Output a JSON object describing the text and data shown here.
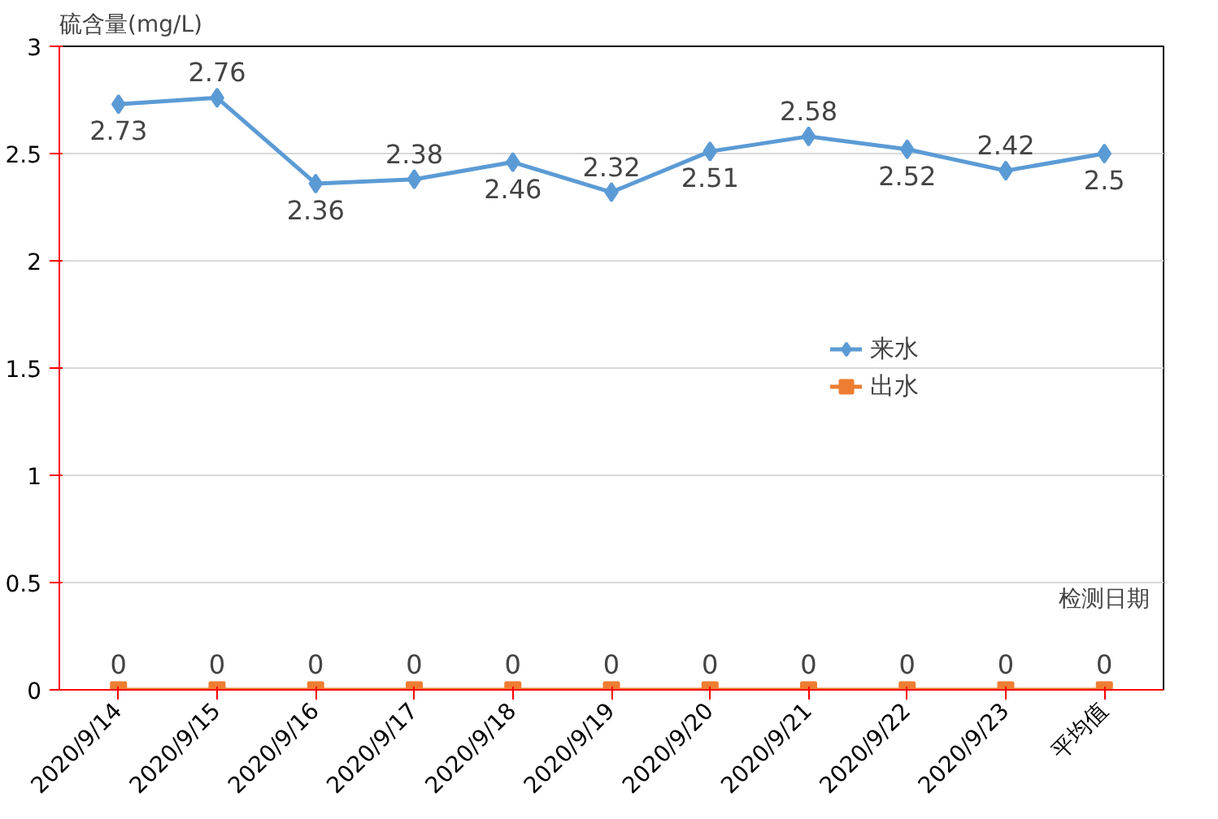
{
  "chart_data": {
    "type": "line",
    "xlabel": "检测日期",
    "ylabel": "硫含量(mg/L)",
    "categories": [
      "2020/9/14",
      "2020/9/15",
      "2020/9/16",
      "2020/9/17",
      "2020/9/18",
      "2020/9/19",
      "2020/9/20",
      "2020/9/21",
      "2020/9/22",
      "2020/9/23",
      "平均值"
    ],
    "series": [
      {
        "name": "来水",
        "color": "#5b9bd5",
        "marker": "diamond",
        "values": [
          2.73,
          2.76,
          2.36,
          2.38,
          2.46,
          2.32,
          2.51,
          2.58,
          2.52,
          2.42,
          2.5
        ]
      },
      {
        "name": "出水",
        "color": "#ed7d31",
        "marker": "square",
        "values": [
          0,
          0,
          0,
          0,
          0,
          0,
          0,
          0,
          0,
          0,
          0
        ]
      }
    ],
    "ylim": [
      0,
      3
    ],
    "yticks": [
      0,
      0.5,
      1,
      1.5,
      2,
      2.5,
      3
    ],
    "grid": "y",
    "legend": "right",
    "data_labels": true,
    "line_style": "solid"
  }
}
